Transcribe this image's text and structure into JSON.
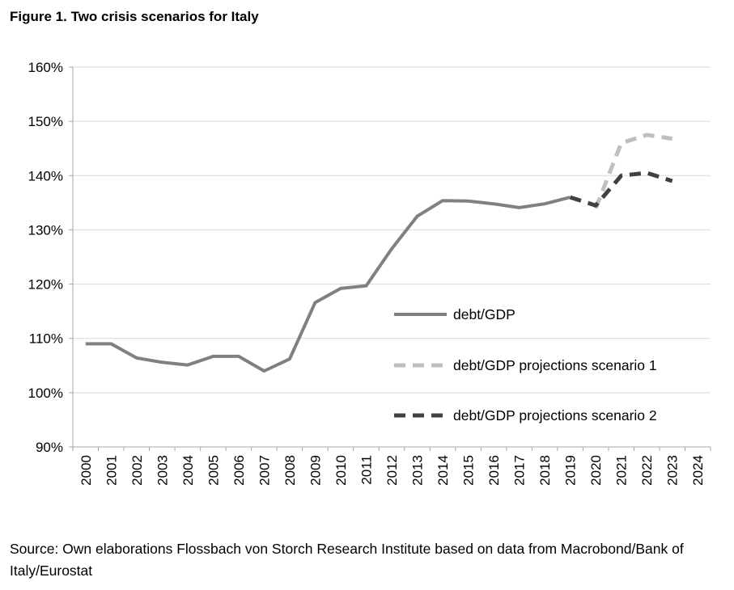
{
  "figure_title": "Figure 1. Two crisis scenarios for Italy",
  "source_text": "Source: Own elaborations Flossbach von Storch Research Institute based on data from Macrobond/Bank of Italy/Eurostat",
  "chart_data": {
    "type": "line",
    "x": [
      "2000",
      "2001",
      "2002",
      "2003",
      "2004",
      "2005",
      "2006",
      "2007",
      "2008",
      "2009",
      "2010",
      "2011",
      "2012",
      "2013",
      "2014",
      "2015",
      "2016",
      "2017",
      "2018",
      "2019",
      "2020",
      "2021",
      "2022",
      "2023",
      "2024"
    ],
    "y_ticks": [
      "90%",
      "100%",
      "110%",
      "120%",
      "130%",
      "140%",
      "150%",
      "160%"
    ],
    "ylim": [
      90,
      160
    ],
    "grid": "horizontal",
    "legend_position": "center-right",
    "series": [
      {
        "name": "debt/GDP",
        "color": "#808080",
        "style": "solid",
        "values": [
          109.0,
          109.0,
          106.4,
          105.6,
          105.1,
          106.7,
          106.7,
          104.0,
          106.2,
          116.6,
          119.2,
          119.7,
          126.5,
          132.5,
          135.4,
          135.3,
          134.8,
          134.1,
          134.8,
          136.0,
          null,
          null,
          null,
          null,
          null
        ]
      },
      {
        "name": "debt/GDP projections scenario 1",
        "color": "#bfbfbf",
        "style": "dashed",
        "values": [
          null,
          null,
          null,
          null,
          null,
          null,
          null,
          null,
          null,
          null,
          null,
          null,
          null,
          null,
          null,
          null,
          null,
          null,
          null,
          null,
          134.0,
          146.0,
          147.5,
          146.8,
          null
        ]
      },
      {
        "name": "debt/GDP projections scenario 2",
        "color": "#404040",
        "style": "dashed",
        "values": [
          null,
          null,
          null,
          null,
          null,
          null,
          null,
          null,
          null,
          null,
          null,
          null,
          null,
          null,
          null,
          null,
          null,
          null,
          null,
          136.0,
          134.5,
          140.0,
          140.5,
          139.0,
          null
        ]
      }
    ]
  }
}
